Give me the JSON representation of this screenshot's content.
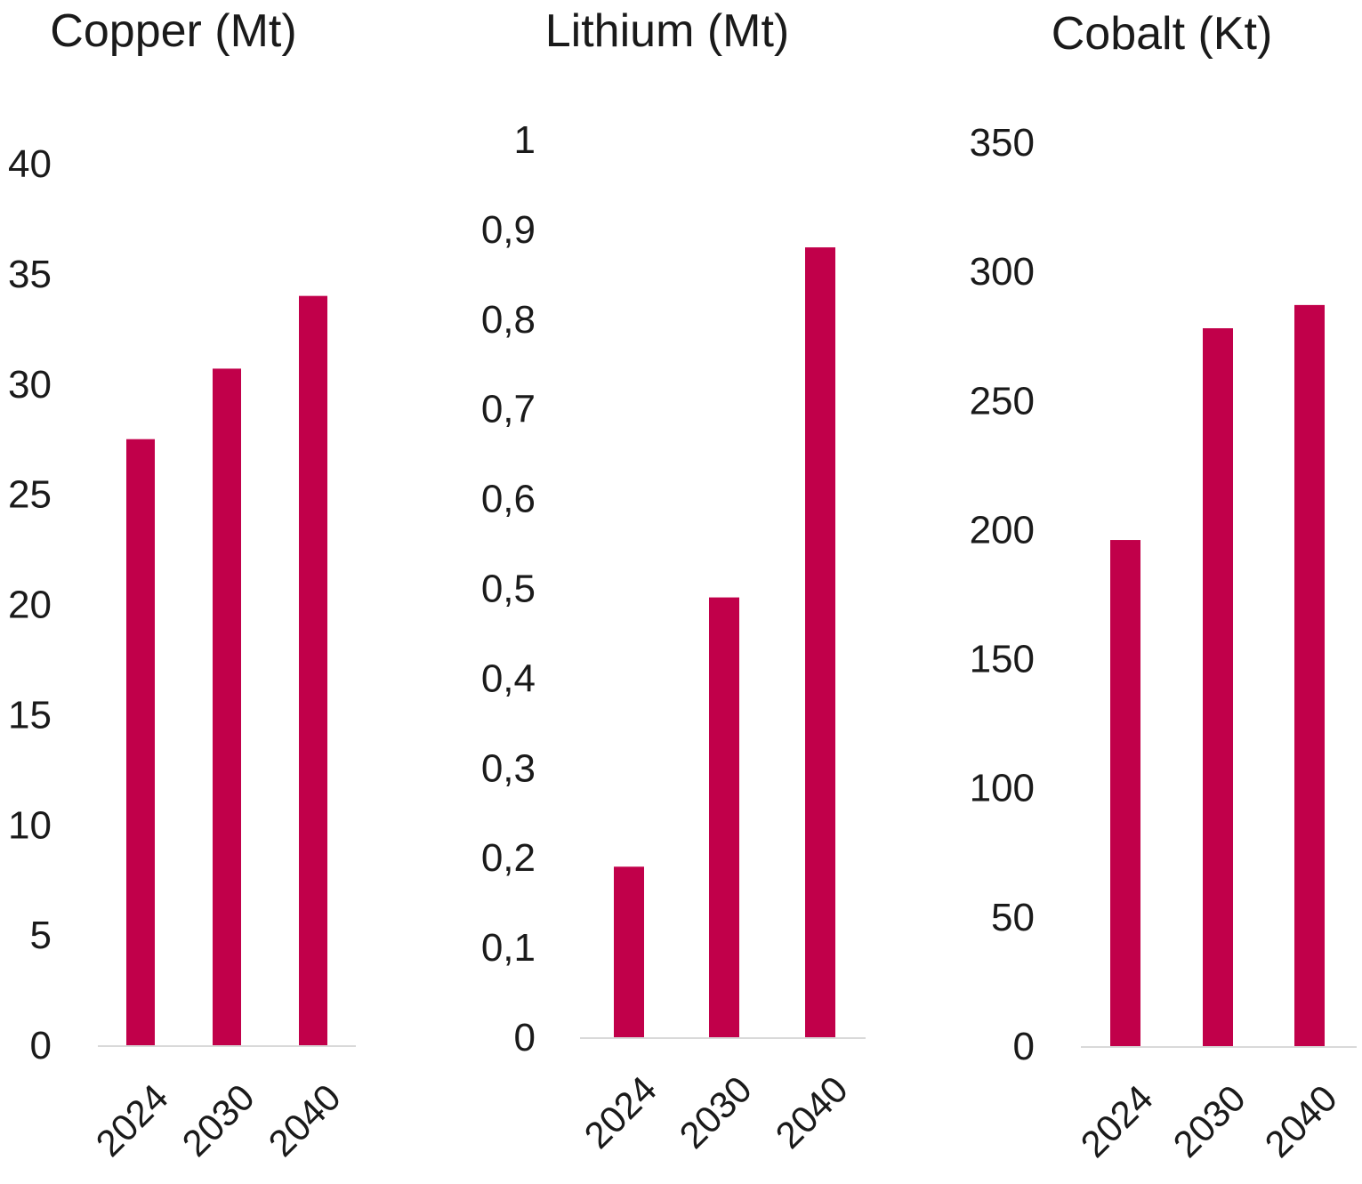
{
  "chart_data": [
    {
      "type": "bar",
      "title": "Copper (Mt)",
      "categories": [
        "2024",
        "2030",
        "2040"
      ],
      "values": [
        27.5,
        30.7,
        34
      ],
      "ylim": [
        0,
        40
      ],
      "yticks": [
        "0",
        "5",
        "10",
        "15",
        "20",
        "25",
        "30",
        "35",
        "40"
      ],
      "tick_values": [
        0,
        5,
        10,
        15,
        20,
        25,
        30,
        35,
        40
      ],
      "grid": false,
      "bar_color": "#c1004a",
      "axis_color": "#d9d9d9"
    },
    {
      "type": "bar",
      "title": "Lithium (Mt)",
      "categories": [
        "2024",
        "2030",
        "2040"
      ],
      "values": [
        0.19,
        0.49,
        0.88
      ],
      "ylim": [
        0,
        1
      ],
      "yticks": [
        "0",
        "0,1",
        "0,2",
        "0,3",
        "0,4",
        "0,5",
        "0,6",
        "0,7",
        "0,8",
        "0,9",
        "1"
      ],
      "tick_values": [
        0,
        0.1,
        0.2,
        0.3,
        0.4,
        0.5,
        0.6,
        0.7,
        0.8,
        0.9,
        1
      ],
      "grid": false,
      "bar_color": "#c1004a",
      "axis_color": "#d9d9d9"
    },
    {
      "type": "bar",
      "title": "Cobalt (Kt)",
      "categories": [
        "2024",
        "2030",
        "2040"
      ],
      "values": [
        196,
        278,
        287
      ],
      "ylim": [
        0,
        350
      ],
      "yticks": [
        "0",
        "50",
        "100",
        "150",
        "200",
        "250",
        "300",
        "350"
      ],
      "tick_values": [
        0,
        50,
        100,
        150,
        200,
        250,
        300,
        350
      ],
      "grid": false,
      "bar_color": "#c1004a",
      "axis_color": "#d9d9d9"
    }
  ]
}
